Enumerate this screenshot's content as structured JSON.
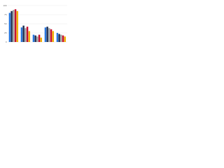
{
  "chart_data": {
    "type": "bar",
    "categories": [
      null,
      null,
      null,
      null,
      null
    ],
    "series": [
      {
        "color": "#2876dd",
        "values": [
          80,
          40,
          20,
          40,
          25
        ]
      },
      {
        "color": "#1c2d4f",
        "values": [
          85,
          45,
          18,
          42,
          22
        ]
      },
      {
        "color": "#a0a0a0",
        "values": [
          88,
          38,
          15,
          38,
          20
        ]
      },
      {
        "color": "#c8102e",
        "values": [
          90,
          42,
          20,
          35,
          18
        ]
      },
      {
        "color": "#f0b000",
        "values": [
          85,
          30,
          12,
          30,
          15
        ]
      }
    ],
    "ylim": [
      0,
      100
    ],
    "yticks": [
      0,
      25,
      50,
      75,
      100
    ],
    "grid": true
  }
}
